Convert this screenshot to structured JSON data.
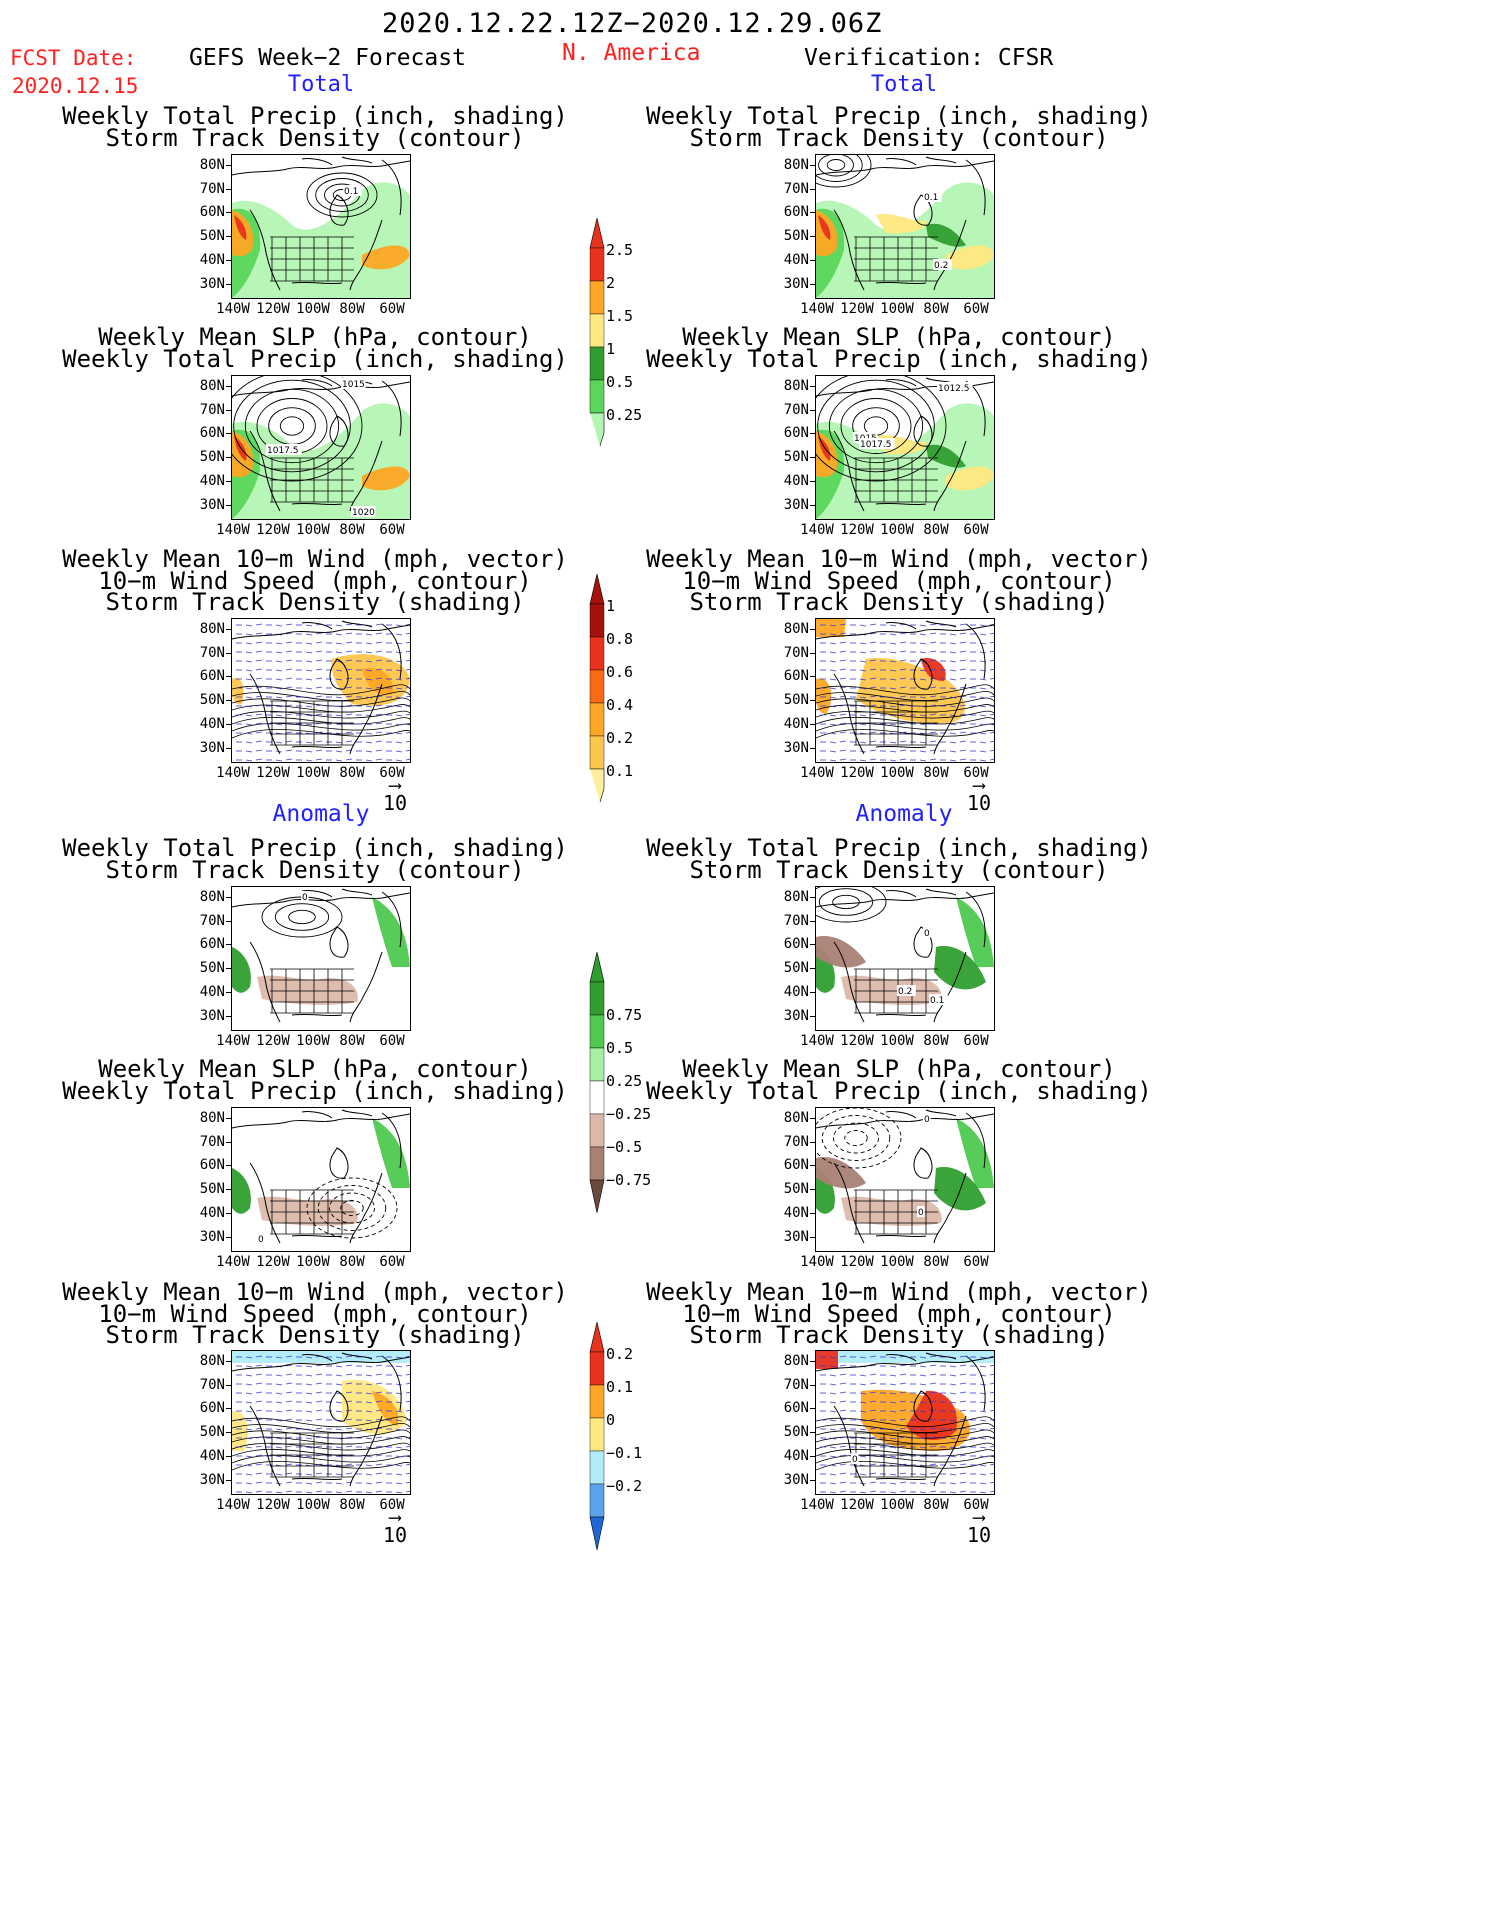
{
  "header": {
    "date_range": "2020.12.22.12Z−2020.12.29.06Z",
    "fcst_date_label": "FCST Date:",
    "fcst_date_value": "2020.12.15",
    "left_title": "GEFS Week−2 Forecast",
    "region": "N. America",
    "right_title": "Verification: CFSR"
  },
  "sections": {
    "total": "Total",
    "anomaly": "Anomaly"
  },
  "panel_titles": {
    "precip_track": [
      "Weekly Total Precip (inch, shading)",
      "Storm Track Density (contour)"
    ],
    "slp_precip": [
      "Weekly Mean SLP (hPa, contour)",
      "Weekly Total Precip (inch, shading)"
    ],
    "wind_track": [
      "Weekly Mean 10−m Wind (mph, vector)",
      "10−m Wind Speed (mph, contour)",
      "Storm Track Density (shading)"
    ]
  },
  "axes": {
    "lat_ticks": [
      "80N",
      "70N",
      "60N",
      "50N",
      "40N",
      "30N"
    ],
    "lon_ticks": [
      "140W",
      "120W",
      "100W",
      "80W",
      "60W"
    ]
  },
  "vector_reference": "10",
  "contour_labels": {
    "fc_total_precip": [
      "0.1"
    ],
    "fc_total_slp": [
      "1015",
      "1017.5",
      "1020"
    ],
    "ver_total_precip": [
      "0.1",
      "0.2"
    ],
    "ver_total_slp": [
      "1012.5",
      "1015",
      "1017.5"
    ],
    "fc_anom_precip": [
      "0"
    ],
    "fc_anom_slp": [
      "0"
    ],
    "ver_anom_precip": [
      "0.2",
      "0.1",
      "0"
    ],
    "ver_anom_slp": [
      "0",
      "0"
    ],
    "ver_anom_wind": [
      "0"
    ]
  },
  "colorbars": {
    "precip_total": {
      "labels": [
        "2.5",
        "2",
        "1.5",
        "1",
        "0.5",
        "0.25"
      ],
      "colors": [
        "#e8321c",
        "#fda624",
        "#ffe880",
        "#2f9e2f",
        "#5ad65a",
        "#b3f5b3"
      ]
    },
    "track_total": {
      "labels": [
        "1",
        "0.8",
        "0.6",
        "0.4",
        "0.2",
        "0.1"
      ],
      "colors": [
        "#a6110b",
        "#e8321c",
        "#fa6a10",
        "#fda624",
        "#fdc54a",
        "#ffee9c"
      ]
    },
    "precip_anomaly": {
      "labels": [
        "0.75",
        "0.5",
        "0.25",
        "−0.25",
        "−0.5",
        "−0.75"
      ],
      "colors": [
        "#2f9e2f",
        "#4fc94f",
        "#a6f0a6",
        "#ffffff",
        "#dcb8aa",
        "#a98174",
        "#6b4a3d"
      ]
    },
    "track_anomaly": {
      "labels": [
        "0.2",
        "0.1",
        "0",
        "−0.1",
        "−0.2"
      ],
      "colors": [
        "#e8321c",
        "#fda624",
        "#ffe880",
        "#b0ebf7",
        "#5aa5ea",
        "#1f66d6"
      ]
    }
  }
}
